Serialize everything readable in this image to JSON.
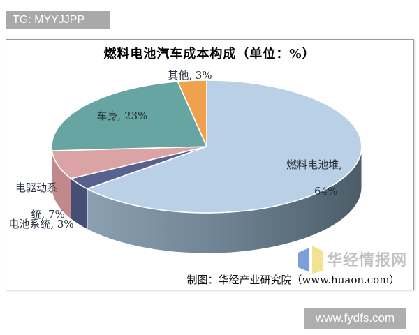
{
  "banner": {
    "text": "TG: MYYJJPP",
    "bg": "#a9a9a9"
  },
  "footer_bar": {
    "text": "www.fydfs.com",
    "bg": "#aeaeae"
  },
  "source": {
    "text": "制图：华经产业研究院（www.huaon.com）"
  },
  "watermark": {
    "text": "华经情报网",
    "logo_colors": {
      "left_page": "#7b9fdb",
      "right_page": "#f2e391"
    }
  },
  "chart_data": {
    "type": "pie",
    "style": "3d",
    "title": "燃料电池汽车成本构成（单位：%）",
    "unit": "%",
    "start_angle_deg": 0,
    "direction": "clockwise",
    "legend_position": "none",
    "slices": [
      {
        "name": "燃料电池堆",
        "value": 64,
        "color": "#b9d0e6",
        "side_gradient": [
          "#8ba0b1",
          "#6e8292",
          "#4c5d68"
        ],
        "cut_color": "#a9bdd1"
      },
      {
        "name": "电池系统",
        "value": 3,
        "color": "#57628f",
        "side_color": "#454e74"
      },
      {
        "name": "电驱动系统",
        "value": 7,
        "color": "#dba3a4",
        "side_color": "#c2898d"
      },
      {
        "name": "车身",
        "value": 23,
        "color": "#67a5a2",
        "side_color": "#4f8a85"
      },
      {
        "name": "其他",
        "value": 3,
        "color": "#f0a14d",
        "side_color": "#d18434"
      }
    ],
    "callouts": {
      "other": "其他, 3%",
      "body": "车身, 23%",
      "fuel_line1": "燃料电池堆,",
      "fuel_line2": "64%",
      "drive_line1": "电驱动系",
      "drive_line2": "统, 7%",
      "battery": "电池系统, 3%"
    }
  }
}
